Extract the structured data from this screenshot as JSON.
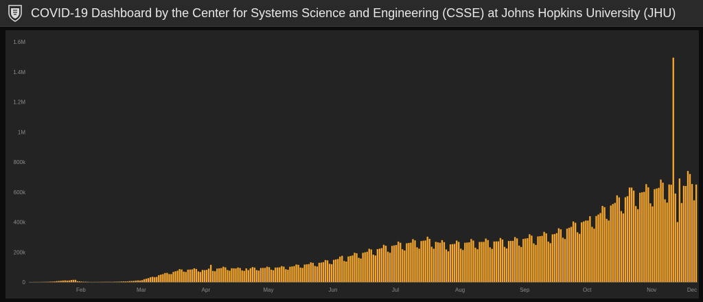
{
  "header": {
    "title": "COVID-19 Dashboard by the Center for Systems Science and Engineering (CSSE) at Johns Hopkins University (JHU)",
    "logo_icon": "jhu-shield-icon"
  },
  "colors": {
    "bar": "#f5a62c",
    "background": "#232323",
    "header_bg": "#2a2a2a",
    "axis_text": "#8c8c8c"
  },
  "chart_data": {
    "type": "bar",
    "title": "",
    "xlabel": "",
    "ylabel": "",
    "ylim": [
      0,
      1600000
    ],
    "y_ticks": [
      0,
      200000,
      400000,
      600000,
      800000,
      1000000,
      1200000,
      1400000,
      1600000
    ],
    "y_tick_labels": [
      "0",
      "200k",
      "400k",
      "600k",
      "800k",
      "1M",
      "1.2M",
      "1.4M",
      "1.6M"
    ],
    "x_tick_labels": [
      "Feb",
      "Mar",
      "Apr",
      "May",
      "Jun",
      "Jul",
      "Aug",
      "Sep",
      "Oct",
      "Nov",
      "Dec"
    ],
    "x_tick_dates": [
      "2020-02-01",
      "2020-03-01",
      "2020-04-01",
      "2020-05-01",
      "2020-06-01",
      "2020-07-01",
      "2020-08-01",
      "2020-09-01",
      "2020-10-01",
      "2020-11-01",
      "2020-12-01"
    ],
    "x_start": "2020-01-22",
    "x_end": "2020-12-07",
    "grid": false,
    "series": [
      {
        "name": "",
        "anchors": [
          [
            "2020-01-22",
            600
          ],
          [
            "2020-01-31",
            2000
          ],
          [
            "2020-02-12",
            15000
          ],
          [
            "2020-02-13",
            6000
          ],
          [
            "2020-02-20",
            1000
          ],
          [
            "2020-03-01",
            2000
          ],
          [
            "2020-03-05",
            3000
          ],
          [
            "2020-03-12",
            8000
          ],
          [
            "2020-03-15",
            12000
          ],
          [
            "2020-03-20",
            30000
          ],
          [
            "2020-03-25",
            50000
          ],
          [
            "2020-03-31",
            68000
          ],
          [
            "2020-04-03",
            80000
          ],
          [
            "2020-04-10",
            85000
          ],
          [
            "2020-04-15",
            80000
          ],
          [
            "2020-04-24",
            95000
          ],
          [
            "2020-05-01",
            90000
          ],
          [
            "2020-05-15",
            95000
          ],
          [
            "2020-05-25",
            100000
          ],
          [
            "2020-06-01",
            115000
          ],
          [
            "2020-06-10",
            130000
          ],
          [
            "2020-06-20",
            160000
          ],
          [
            "2020-06-30",
            195000
          ],
          [
            "2020-07-10",
            230000
          ],
          [
            "2020-07-17",
            250000
          ],
          [
            "2020-07-31",
            280000
          ],
          [
            "2020-08-10",
            250000
          ],
          [
            "2020-08-20",
            265000
          ],
          [
            "2020-08-31",
            270000
          ],
          [
            "2020-09-10",
            275000
          ],
          [
            "2020-09-20",
            300000
          ],
          [
            "2020-09-30",
            320000
          ],
          [
            "2020-10-10",
            380000
          ],
          [
            "2020-10-20",
            440000
          ],
          [
            "2020-10-28",
            520000
          ],
          [
            "2020-11-05",
            580000
          ],
          [
            "2020-11-15",
            610000
          ],
          [
            "2020-11-24",
            650000
          ],
          [
            "2020-12-02",
            640000
          ],
          [
            "2020-12-07",
            620000
          ]
        ],
        "overrides": [
          [
            "2020-02-13",
            15000
          ],
          [
            "2020-04-18",
            115000
          ],
          [
            "2020-05-06",
            80000
          ],
          [
            "2020-06-20",
            175000
          ],
          [
            "2020-10-16",
            410000
          ],
          [
            "2020-11-05",
            630000
          ],
          [
            "2020-11-26",
            1495000
          ],
          [
            "2020-11-27",
            590000
          ],
          [
            "2020-11-28",
            400000
          ],
          [
            "2020-11-29",
            690000
          ],
          [
            "2020-12-03",
            740000
          ],
          [
            "2020-12-04",
            720000
          ],
          [
            "2020-12-06",
            545000
          ],
          [
            "2020-12-07",
            650000
          ]
        ]
      }
    ]
  }
}
